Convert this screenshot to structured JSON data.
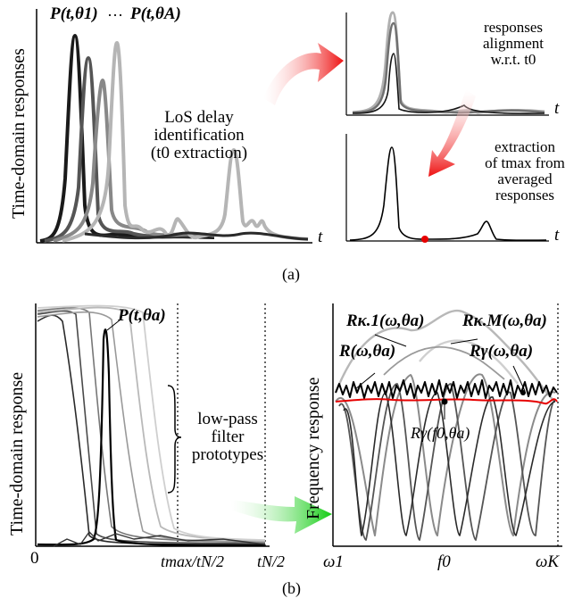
{
  "panel_a": {
    "caption": "(a)",
    "ylabel": "Time-domain responses",
    "p1_label": "P(t,θ1)",
    "ellipsis": "···",
    "pA_label": "P(t,θA)",
    "los_line1": "LoS delay",
    "los_line2": "identification",
    "los_line3": "(t0 extraction)",
    "align_line1": "responses",
    "align_line2": "alignment",
    "align_line3": "w.r.t. t0",
    "extract_line1": "extraction",
    "extract_line2": "of tmax from",
    "extract_line3": "averaged",
    "extract_line4": "responses",
    "t_axis": "t"
  },
  "panel_b": {
    "caption": "(b)",
    "left_ylabel": "Time-domain response",
    "p_label": "P(t,θa)",
    "filter_line1": "low-pass",
    "filter_line2": "filter",
    "filter_line3": "prototypes",
    "zero": "0",
    "tmax_label": "tmax/tN/2",
    "tN_label": "tN/2",
    "right_ylabel": "Frequency response",
    "rk1": "Rκ.1(ω,θa)",
    "rkm": "Rκ.M(ω,θa)",
    "r": "R(ω,θa)",
    "rg": "Rγ(ω,θa)",
    "rgf": "Rγ(f0,θa)",
    "w1": "ω1",
    "f0": "f0",
    "wK": "ωK"
  },
  "colors": {
    "red": "#e60000",
    "green": "#22cc22",
    "gray_dark": "#303030",
    "gray_mid": "#6a6a6a",
    "gray_light": "#b4b4b4"
  }
}
